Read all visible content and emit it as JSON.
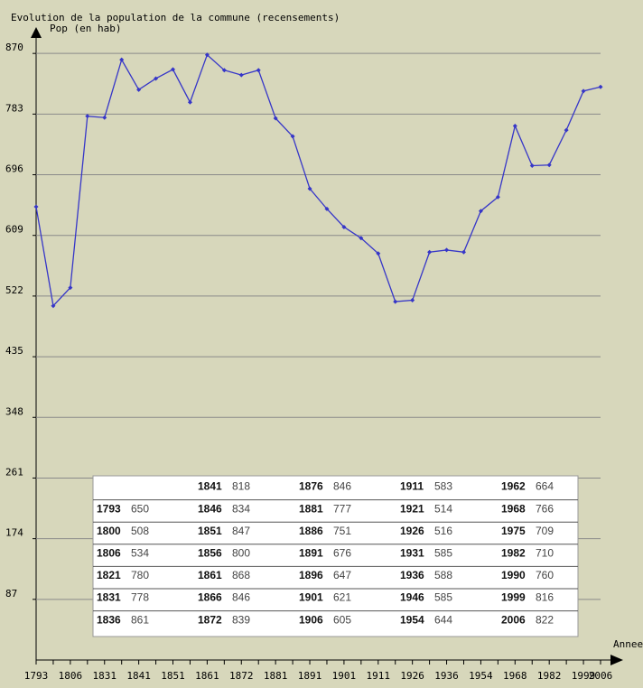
{
  "chart_data": {
    "type": "line",
    "title": "Evolution de la population de la commune (recensements)",
    "y_label": "Pop (en hab)",
    "x_label": "Annee",
    "categories": [
      "1793",
      "1800",
      "1806",
      "1821",
      "1831",
      "1836",
      "1841",
      "1846",
      "1851",
      "1856",
      "1861",
      "1866",
      "1872",
      "1876",
      "1881",
      "1886",
      "1891",
      "1896",
      "1901",
      "1906",
      "1911",
      "1921",
      "1926",
      "1931",
      "1936",
      "1946",
      "1954",
      "1962",
      "1968",
      "1975",
      "1982",
      "1990",
      "1999",
      "2006"
    ],
    "series": [
      {
        "name": "Pop",
        "color": "#3636c8",
        "values": [
          650,
          508,
          534,
          780,
          778,
          861,
          818,
          834,
          847,
          800,
          868,
          846,
          839,
          846,
          777,
          751,
          676,
          647,
          621,
          605,
          583,
          514,
          516,
          585,
          588,
          585,
          644,
          664,
          766,
          709,
          710,
          760,
          816,
          822
        ]
      }
    ],
    "ylim": [
      0,
      900
    ],
    "yticks": [
      87,
      174,
      261,
      348,
      435,
      522,
      609,
      696,
      783,
      870
    ],
    "grid": true
  }
}
